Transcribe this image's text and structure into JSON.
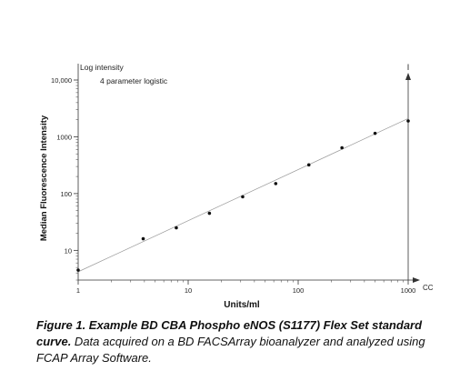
{
  "chart_data": {
    "type": "scatter",
    "title": "",
    "xlabel": "Units/ml",
    "ylabel": "Median Fluorescence Intensity",
    "y_axis_title": "Log intensity",
    "fit_label": "4 parameter logistic",
    "x_end_label": "CC",
    "y_end_label": "I",
    "x_scale": "log",
    "y_scale": "log",
    "xlim": [
      1,
      1000
    ],
    "ylim": [
      3,
      10000
    ],
    "x_ticks": [
      1,
      10,
      100,
      1000
    ],
    "x_tick_labels": [
      "1",
      "10",
      "100",
      "1000"
    ],
    "y_ticks": [
      10,
      100,
      1000,
      10000
    ],
    "y_tick_labels": [
      "10",
      "100",
      "1000",
      "10,000"
    ],
    "grid": false,
    "series": [
      {
        "points": [
          {
            "x": 1,
            "y": 4.5
          },
          {
            "x": 3.9,
            "y": 16
          },
          {
            "x": 7.8,
            "y": 25
          },
          {
            "x": 15.6,
            "y": 45
          },
          {
            "x": 31.3,
            "y": 88
          },
          {
            "x": 62.5,
            "y": 150
          },
          {
            "x": 125,
            "y": 320
          },
          {
            "x": 250,
            "y": 640
          },
          {
            "x": 500,
            "y": 1150
          },
          {
            "x": 1000,
            "y": 1900
          }
        ]
      }
    ],
    "fit_line": {
      "x": [
        1,
        1000
      ],
      "y": [
        4.2,
        2100
      ]
    }
  },
  "caption": {
    "bold": "Figure 1. Example BD CBA Phospho eNOS (S1177) Flex Set standard curve.",
    "rest": " Data acquired on a BD FACSArray bioanalyzer and analyzed using FCAP Array Software."
  }
}
